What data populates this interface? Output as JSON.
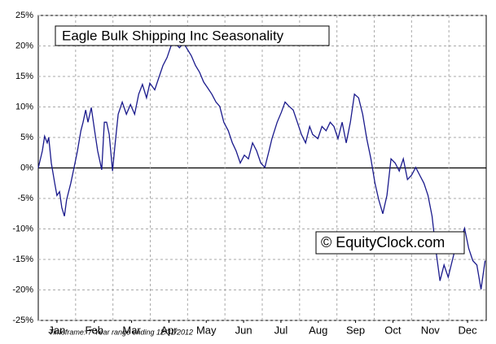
{
  "chart_data": {
    "type": "line",
    "title": "Eagle Bulk Shipping Inc Seasonality",
    "watermark": "© EquityClock.com",
    "footnote": "Timeframe: 7-Year range ending 12/31/2012",
    "xlim": [
      0,
      12
    ],
    "xticks": [
      {
        "value": 0.5,
        "label": "Jan"
      },
      {
        "value": 1.5,
        "label": "Feb"
      },
      {
        "value": 2.5,
        "label": "Mar"
      },
      {
        "value": 3.5,
        "label": "Apr"
      },
      {
        "value": 4.5,
        "label": "May"
      },
      {
        "value": 5.5,
        "label": "Jun"
      },
      {
        "value": 6.5,
        "label": "Jul"
      },
      {
        "value": 7.5,
        "label": "Aug"
      },
      {
        "value": 8.5,
        "label": "Sep"
      },
      {
        "value": 9.5,
        "label": "Oct"
      },
      {
        "value": 10.5,
        "label": "Nov"
      },
      {
        "value": 11.5,
        "label": "Dec"
      }
    ],
    "ylim": [
      -25,
      25
    ],
    "yticks": [
      {
        "value": -25,
        "label": "-25%"
      },
      {
        "value": -20,
        "label": "-20%"
      },
      {
        "value": -15,
        "label": "-15%"
      },
      {
        "value": -10,
        "label": "-10%"
      },
      {
        "value": -5,
        "label": "-5%"
      },
      {
        "value": 0,
        "label": "0%"
      },
      {
        "value": 5,
        "label": "5%"
      },
      {
        "value": 10,
        "label": "10%"
      },
      {
        "value": 15,
        "label": "15%"
      },
      {
        "value": 20,
        "label": "20%"
      },
      {
        "value": 25,
        "label": "25%"
      }
    ],
    "grid": true,
    "series": [
      {
        "color": "#1a1a8c",
        "x": [
          0,
          0.11,
          0.17,
          0.24,
          0.28,
          0.35,
          0.44,
          0.5,
          0.57,
          0.63,
          0.7,
          0.76,
          0.87,
          0.96,
          1.05,
          1.14,
          1.2,
          1.27,
          1.33,
          1.42,
          1.51,
          1.59,
          1.7,
          1.77,
          1.83,
          1.9,
          1.99,
          2.05,
          2.14,
          2.25,
          2.36,
          2.47,
          2.58,
          2.69,
          2.79,
          2.9,
          2.99,
          3.12,
          3.23,
          3.34,
          3.45,
          3.56,
          3.67,
          3.78,
          3.89,
          3.99,
          4.1,
          4.21,
          4.32,
          4.43,
          4.54,
          4.65,
          4.76,
          4.86,
          4.97,
          5.09,
          5.2,
          5.3,
          5.41,
          5.52,
          5.63,
          5.74,
          5.85,
          5.96,
          6.07,
          6.18,
          6.26,
          6.4,
          6.51,
          6.61,
          6.72,
          6.83,
          6.94,
          7.05,
          7.16,
          7.27,
          7.35,
          7.49,
          7.6,
          7.71,
          7.82,
          7.92,
          8.03,
          8.14,
          8.25,
          8.36,
          8.47,
          8.58,
          8.69,
          8.8,
          8.91,
          9.02,
          9.12,
          9.23,
          9.34,
          9.45,
          9.56,
          9.67,
          9.78,
          9.89,
          10,
          10.11,
          10.22,
          10.33,
          10.44,
          10.55,
          10.66,
          10.76,
          10.87,
          10.98,
          11.09,
          11.2,
          11.31,
          11.42,
          11.53,
          11.64,
          11.75,
          11.86,
          11.97
        ],
        "values": [
          0,
          2.8,
          5.2,
          4.1,
          5,
          0.8,
          -2.5,
          -4.5,
          -3.9,
          -6.5,
          -7.9,
          -5.2,
          -2.5,
          0.1,
          2.8,
          6.1,
          7.5,
          9.5,
          7.5,
          9.9,
          6.1,
          2.8,
          -0.3,
          7.5,
          7.5,
          5.5,
          -0.5,
          3.5,
          8.8,
          10.8,
          8.8,
          10.4,
          8.8,
          12.1,
          13.7,
          11.5,
          13.9,
          12.8,
          14.8,
          16.8,
          18.1,
          20.1,
          20.5,
          19.7,
          20.5,
          19.5,
          18.4,
          16.8,
          15.7,
          14.1,
          13.1,
          12.1,
          10.8,
          10.1,
          7.5,
          6.1,
          4.1,
          2.8,
          0.8,
          2.1,
          1.5,
          4.1,
          2.8,
          0.8,
          0.1,
          2.8,
          4.8,
          7.5,
          9.1,
          10.8,
          10.1,
          9.5,
          7.5,
          5.5,
          4.1,
          6.8,
          5.5,
          4.8,
          6.8,
          6.1,
          7.5,
          6.8,
          4.8,
          7.5,
          4.1,
          7.5,
          12.1,
          11.5,
          8.8,
          4.8,
          1.5,
          -2.5,
          -5.2,
          -7.5,
          -4.5,
          1.5,
          0.8,
          -0.5,
          1.5,
          -1.9,
          -1.2,
          0.1,
          -1.2,
          -2.5,
          -4.5,
          -7.9,
          -13.9,
          -18.5,
          -15.9,
          -17.9,
          -15.2,
          -12.5,
          -11.9,
          -9.9,
          -13.2,
          -15.2,
          -15.9,
          -19.9,
          -15.2
        ]
      }
    ]
  }
}
